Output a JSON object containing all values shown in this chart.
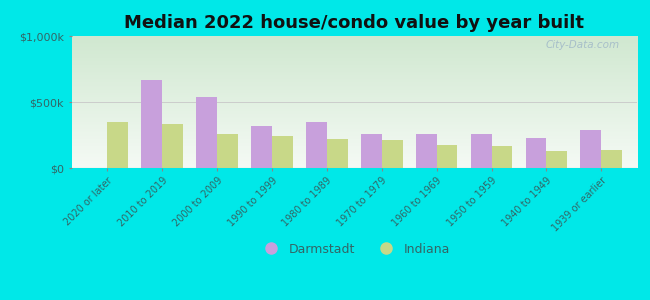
{
  "title": "Median 2022 house/condo value by year built",
  "categories": [
    "2020 or later",
    "2010 to 2019",
    "2000 to 2009",
    "1990 to 1999",
    "1980 to 1989",
    "1970 to 1979",
    "1960 to 1969",
    "1950 to 1959",
    "1940 to 1949",
    "1939 or earlier"
  ],
  "darmstadt": [
    0,
    670000,
    540000,
    320000,
    350000,
    260000,
    255000,
    255000,
    230000,
    290000
  ],
  "indiana": [
    350000,
    330000,
    260000,
    240000,
    220000,
    210000,
    175000,
    165000,
    130000,
    140000
  ],
  "darmstadt_color": "#c8a0dc",
  "indiana_color": "#c8d888",
  "bg_outer": "#00e8e8",
  "title_fontsize": 13,
  "ylim": [
    0,
    1000000
  ],
  "yticks": [
    0,
    500000,
    1000000
  ],
  "ytick_labels": [
    "$0",
    "$500k",
    "$1,000k"
  ],
  "bar_width": 0.38,
  "legend_darmstadt": "Darmstadt",
  "legend_indiana": "Indiana",
  "label_color": "#336666",
  "watermark_color": "#a0b8c8"
}
